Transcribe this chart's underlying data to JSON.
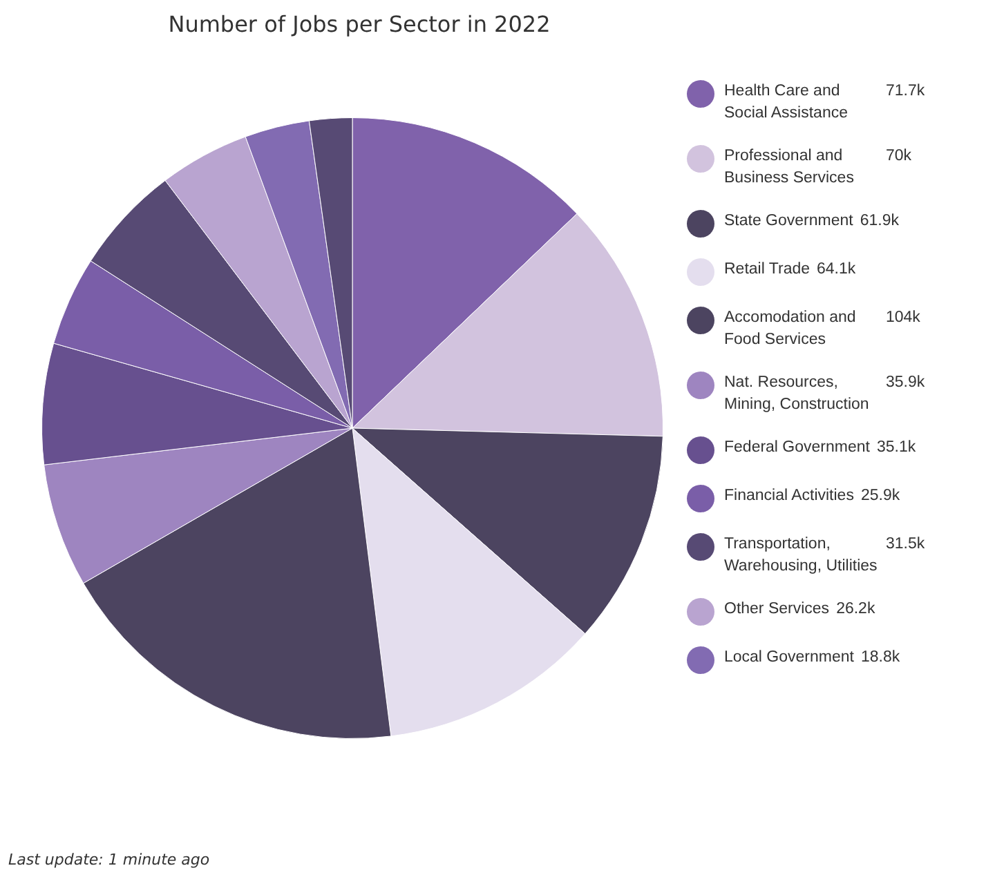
{
  "chart_data": {
    "type": "pie",
    "title": "Number of Jobs per Sector in 2022",
    "categories": [
      "Health Care and Social Assistance",
      "Professional and Business Services",
      "State Government",
      "Retail Trade",
      "Accomodation and Food Services",
      "Nat. Resources, Mining, Construction",
      "Federal Government",
      "Financial Activities",
      "Transportation, Warehousing, Utilities",
      "Other Services",
      "Local Government",
      null
    ],
    "values": [
      71700,
      70000,
      61900,
      64100,
      104000,
      35900,
      35100,
      25900,
      31500,
      26200,
      18800,
      12400
    ],
    "value_labels": [
      "71.7k",
      "70k",
      "61.9k",
      "64.1k",
      "104k",
      "35.9k",
      "35.1k",
      "25.9k",
      "31.5k",
      "26.2k",
      "18.8k",
      null
    ],
    "colors": [
      "#8062ab",
      "#d2c3de",
      "#4c4460",
      "#e4deee",
      "#4c4460",
      "#9e85c0",
      "#67508f",
      "#7a5ea8",
      "#574a74",
      "#b9a4d0",
      "#826bb2",
      "#574a74"
    ],
    "legend": "right",
    "annotations": [
      "Last update: 1 minute ago"
    ]
  }
}
